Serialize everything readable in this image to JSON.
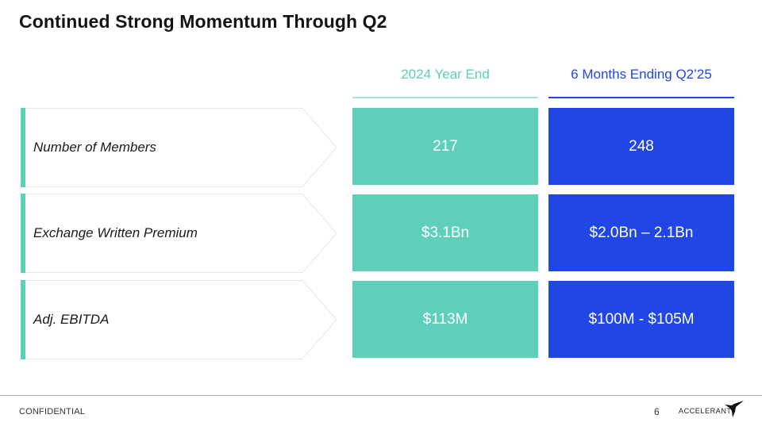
{
  "slide": {
    "title": "Continued Strong Momentum Through Q2",
    "columns": [
      "2024 Year End",
      "6 Months Ending Q2’25"
    ],
    "rows": [
      {
        "label": "Number of Members",
        "values": [
          "217",
          "248"
        ]
      },
      {
        "label": "Exchange Written Premium",
        "values": [
          "$3.1Bn",
          "$2.0Bn – 2.1Bn"
        ]
      },
      {
        "label": "Adj. EBITDA",
        "values": [
          "$113M",
          "$100M - $105M"
        ]
      }
    ]
  },
  "footer": {
    "left": "CONFIDENTIAL",
    "page_number": "6",
    "brand": "ACCELERANT",
    "brand_icon": "bird-icon"
  },
  "colors": {
    "teal": "#5ecfb9",
    "blue": "#2046e6",
    "title": "#141414"
  }
}
